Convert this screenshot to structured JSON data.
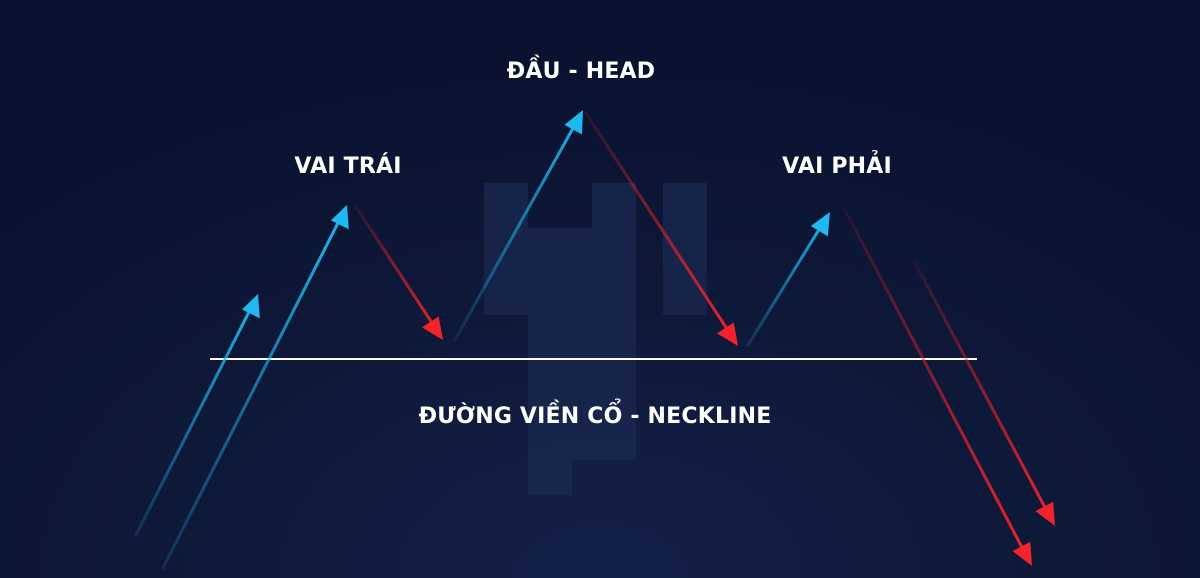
{
  "labels": {
    "head": "ĐẦU - HEAD",
    "left_shoulder": "VAI TRÁI",
    "right_shoulder": "VAI PHẢI",
    "neckline": "ĐƯỜNG VIỀN CỔ - NECKLINE"
  },
  "colors": {
    "background": "#0d1633",
    "up_arrow": "#1fb8f0",
    "down_arrow": "#f2232b",
    "neckline": "#ffffff",
    "watermark": "#1a2950"
  }
}
